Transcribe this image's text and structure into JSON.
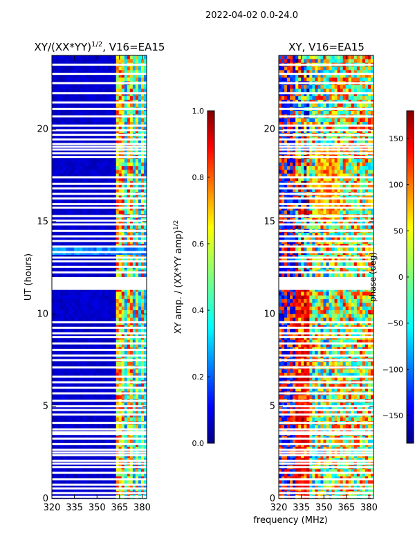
{
  "figure": {
    "suptitle": "2022-04-02 0.0-24.0",
    "xlabel": "frequency (MHz)"
  },
  "chart_data": [
    {
      "type": "heatmap",
      "title_text": "XY/(XX*YY)",
      "title_exp": "1/2",
      "title_suffix": ", V16=EA15",
      "ylabel": "UT (hours)",
      "xlim": [
        320,
        383
      ],
      "ylim": [
        0,
        24
      ],
      "xticks": [
        320,
        335,
        350,
        365,
        380
      ],
      "yticks": [
        0,
        5,
        10,
        15,
        20
      ],
      "colorbar": {
        "label_text": "XY amp. / (XX*YY amp)",
        "label_exp": "1/2",
        "range": [
          0.0,
          1.0
        ],
        "ticks": [
          "0.0",
          "0.2",
          "0.4",
          "0.6",
          "0.8",
          "1.0"
        ],
        "tick_values": [
          0.0,
          0.2,
          0.4,
          0.6,
          0.8,
          1.0
        ]
      },
      "colormap": "jet",
      "rfi_channels_mhz": [
        364.5,
        367.5,
        370.5,
        373.5,
        376.5,
        379.5
      ]
    },
    {
      "type": "heatmap",
      "title_text": "XY, V16=EA15",
      "xlim": [
        320,
        383
      ],
      "ylim": [
        0,
        24
      ],
      "xticks": [
        320,
        335,
        350,
        365,
        380
      ],
      "yticks": [
        0,
        5,
        10,
        15,
        20
      ],
      "colorbar": {
        "label_text": "phase (deg)",
        "range": [
          -180,
          180
        ],
        "ticks": [
          "−150",
          "−100",
          "−50",
          "0",
          "50",
          "100",
          "150"
        ],
        "tick_values": [
          -150,
          -100,
          -50,
          0,
          50,
          100,
          150
        ]
      },
      "colormap": "jet"
    }
  ],
  "blank_rows_ut": [
    0.1,
    0.3,
    0.55,
    0.75,
    1.05,
    1.4,
    1.7,
    1.9,
    2.05,
    2.35,
    2.5,
    2.65,
    2.95,
    3.25,
    3.5,
    3.6,
    3.75,
    4.1,
    4.55,
    4.8,
    5.0,
    5.3,
    5.7,
    6.0,
    6.3,
    6.6,
    7.1,
    7.5,
    7.75,
    8.05,
    8.4,
    8.75,
    8.95,
    9.25,
    9.55,
    11.55,
    11.9,
    12.25,
    12.55,
    12.85,
    13.05,
    13.35,
    13.65,
    13.95,
    14.2,
    14.5,
    14.85,
    15.05,
    15.3,
    15.75,
    15.95,
    16.25,
    16.5,
    16.8,
    17.05,
    17.4,
    18.5,
    18.7,
    18.9,
    19.05,
    19.2,
    19.45,
    19.7,
    19.95,
    20.2,
    20.7,
    21.1,
    21.45,
    21.95,
    22.5,
    23.0,
    23.5
  ]
}
